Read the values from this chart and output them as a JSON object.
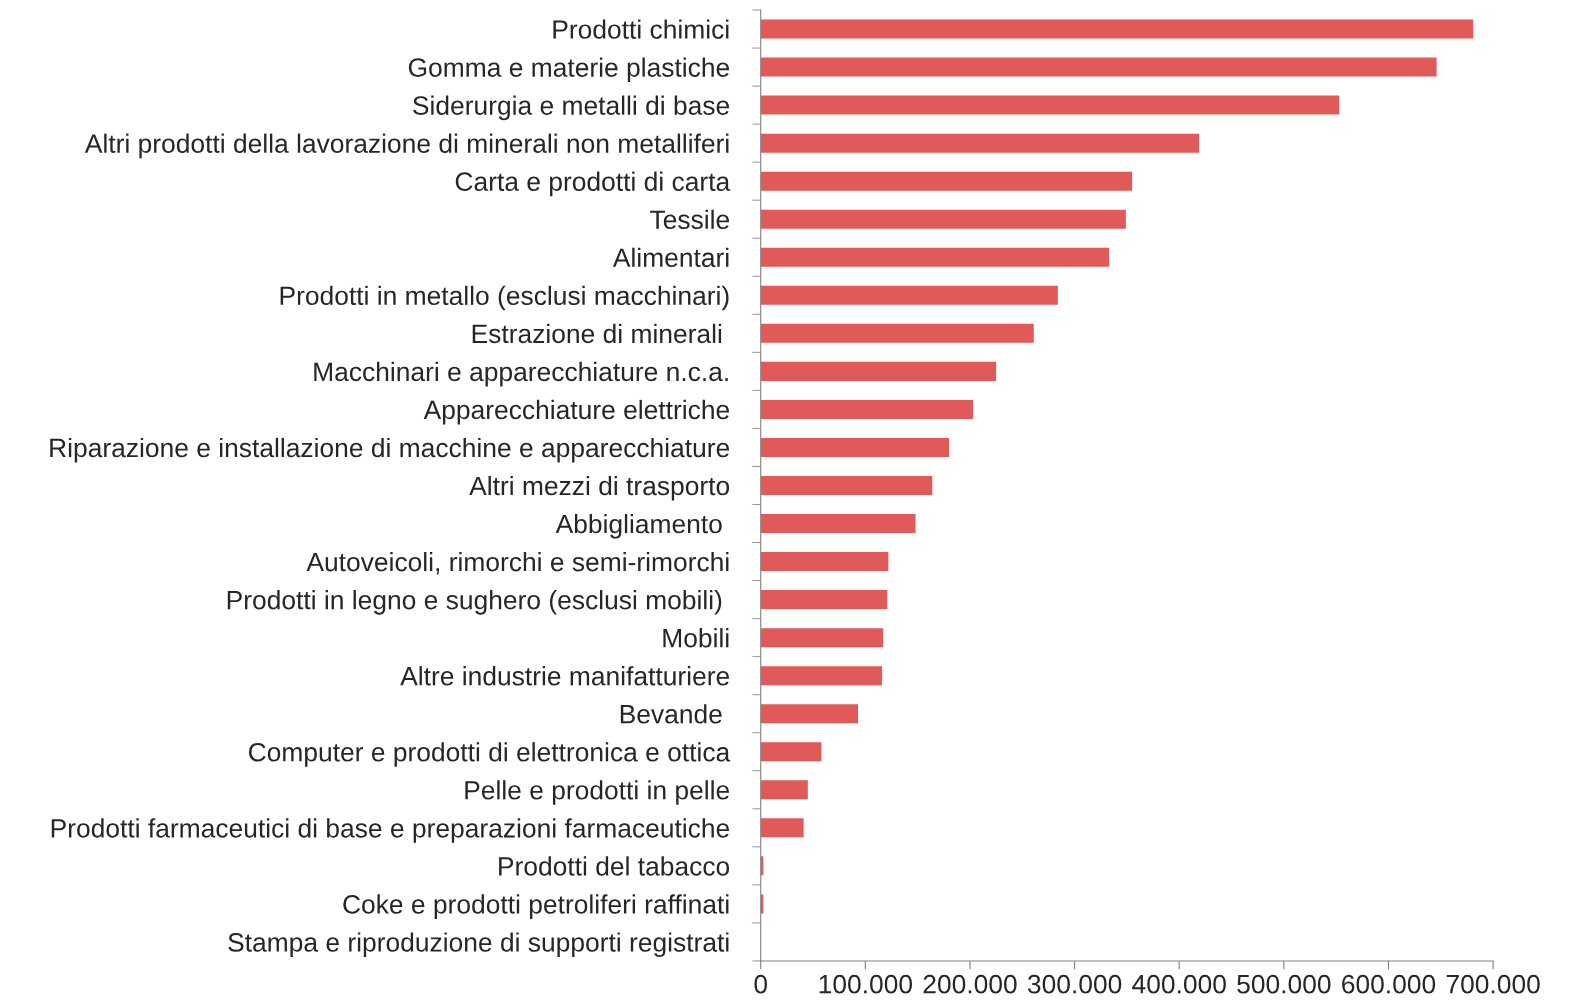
{
  "chart_data": {
    "type": "bar",
    "orientation": "horizontal",
    "categories": [
      "Prodotti chimici",
      "Gomma e materie plastiche",
      "Siderurgia e metalli di base",
      "Altri prodotti della lavorazione di minerali non metalliferi",
      "Carta e prodotti di carta",
      "Tessile",
      "Alimentari",
      "Prodotti in metallo (esclusi macchinari)",
      "Estrazione di minerali ",
      "Macchinari e apparecchiature n.c.a.",
      "Apparecchiature elettriche",
      "Riparazione e installazione di macchine e apparecchiature",
      "Altri mezzi di trasporto",
      "Abbigliamento ",
      "Autoveicoli, rimorchi e semi-rimorchi",
      "Prodotti in legno e sughero (esclusi mobili) ",
      "Mobili",
      "Altre industrie manifatturiere",
      "Bevande ",
      "Computer e prodotti di elettronica e ottica",
      "Pelle e prodotti in pelle",
      "Prodotti farmaceutici di base e preparazioni farmaceutiche",
      "Prodotti del tabacco",
      "Coke e prodotti petroliferi raffinati",
      "Stampa e riproduzione di supporti registrati"
    ],
    "values": [
      681000,
      646000,
      553000,
      419000,
      355000,
      349000,
      333000,
      284000,
      261000,
      225000,
      203000,
      180000,
      164000,
      148000,
      122000,
      121000,
      117000,
      116000,
      93000,
      58000,
      45000,
      41000,
      2500,
      2500,
      0
    ],
    "color": "#e05a5a",
    "xlim": [
      0,
      700000
    ],
    "xticks": [
      0,
      {
        "value": 100000,
        "label": "100.000"
      },
      {
        "value": 200000,
        "label": "200.000"
      },
      {
        "value": 300000,
        "label": "300.000"
      },
      {
        "value": 400000,
        "label": "400.000"
      },
      {
        "value": 500000,
        "label": "500.000"
      },
      {
        "value": 600000,
        "label": "600.000"
      },
      {
        "value": 700000,
        "label": "700.000"
      }
    ],
    "grid": false,
    "legend": false
  }
}
